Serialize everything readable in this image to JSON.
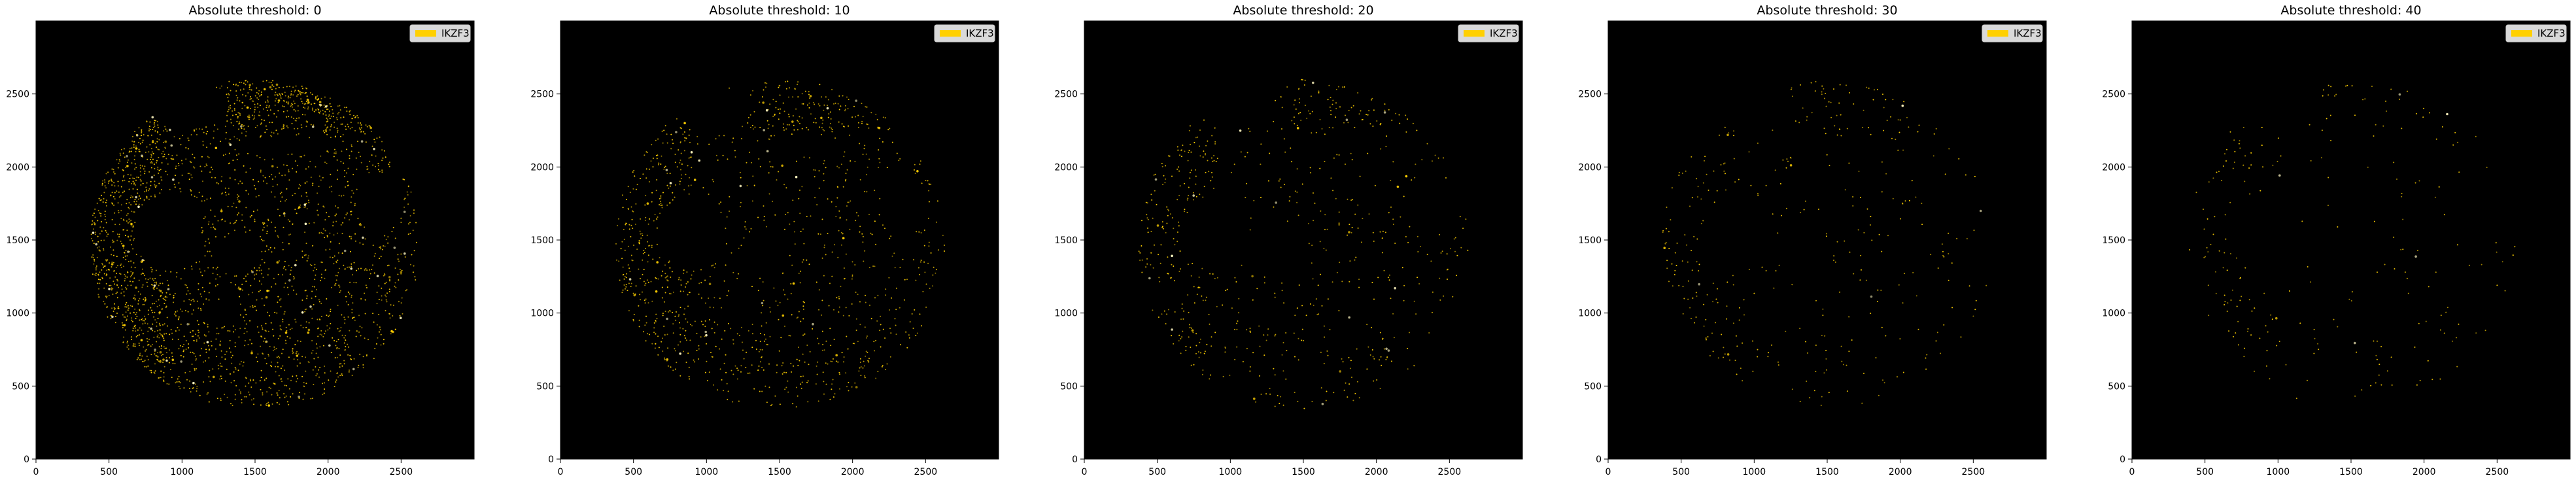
{
  "colors": {
    "background": "#000000",
    "marker": "#ffd000",
    "figure": "#ffffff"
  },
  "chart_data": [
    {
      "type": "scatter",
      "title": "Absolute threshold: 0",
      "xlabel": "",
      "ylabel": "",
      "xlim": [
        0,
        3000
      ],
      "ylim": [
        0,
        3000
      ],
      "xticks": [
        0,
        500,
        1000,
        1500,
        2000,
        2500
      ],
      "yticks": [
        0,
        500,
        1000,
        1500,
        2000,
        2500
      ],
      "legend": {
        "placement": "top-right",
        "entries": [
          "IKZF3"
        ]
      },
      "grid": false,
      "series": [
        {
          "name": "IKZF3",
          "color": "#ffd000",
          "relative_density": 1.0
        }
      ]
    },
    {
      "type": "scatter",
      "title": "Absolute threshold: 10",
      "xlabel": "",
      "ylabel": "",
      "xlim": [
        0,
        3000
      ],
      "ylim": [
        0,
        3000
      ],
      "xticks": [
        0,
        500,
        1000,
        1500,
        2000,
        2500
      ],
      "yticks": [
        0,
        500,
        1000,
        1500,
        2000,
        2500
      ],
      "legend": {
        "placement": "top-right",
        "entries": [
          "IKZF3"
        ]
      },
      "grid": false,
      "series": [
        {
          "name": "IKZF3",
          "color": "#ffd000",
          "relative_density": 0.45
        }
      ]
    },
    {
      "type": "scatter",
      "title": "Absolute threshold: 20",
      "xlabel": "",
      "ylabel": "",
      "xlim": [
        0,
        3000
      ],
      "ylim": [
        0,
        3000
      ],
      "xticks": [
        0,
        500,
        1000,
        1500,
        2000,
        2500
      ],
      "yticks": [
        0,
        500,
        1000,
        1500,
        2000,
        2500
      ],
      "legend": {
        "placement": "top-right",
        "entries": [
          "IKZF3"
        ]
      },
      "grid": false,
      "series": [
        {
          "name": "IKZF3",
          "color": "#ffd000",
          "relative_density": 0.25
        }
      ]
    },
    {
      "type": "scatter",
      "title": "Absolute threshold: 30",
      "xlabel": "",
      "ylabel": "",
      "xlim": [
        0,
        3000
      ],
      "ylim": [
        0,
        3000
      ],
      "xticks": [
        0,
        500,
        1000,
        1500,
        2000,
        2500
      ],
      "yticks": [
        0,
        500,
        1000,
        1500,
        2000,
        2500
      ],
      "legend": {
        "placement": "top-right",
        "entries": [
          "IKZF3"
        ]
      },
      "grid": false,
      "series": [
        {
          "name": "IKZF3",
          "color": "#ffd000",
          "relative_density": 0.14
        }
      ]
    },
    {
      "type": "scatter",
      "title": "Absolute threshold: 40",
      "xlabel": "",
      "ylabel": "",
      "xlim": [
        0,
        3000
      ],
      "ylim": [
        0,
        3000
      ],
      "xticks": [
        0,
        500,
        1000,
        1500,
        2000,
        2500
      ],
      "yticks": [
        0,
        500,
        1000,
        1500,
        2000,
        2500
      ],
      "legend": {
        "placement": "top-right",
        "entries": [
          "IKZF3"
        ]
      },
      "grid": false,
      "series": [
        {
          "name": "IKZF3",
          "color": "#ffd000",
          "relative_density": 0.09
        }
      ]
    }
  ]
}
